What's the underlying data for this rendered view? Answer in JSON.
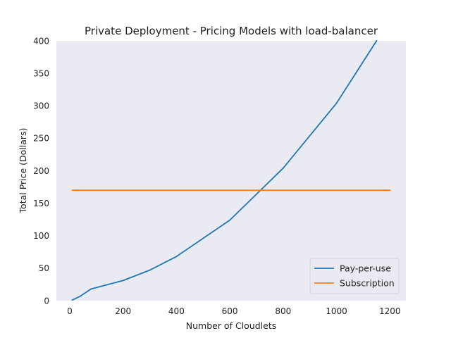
{
  "chart_data": {
    "type": "line",
    "title": "Private Deployment - Pricing Models with load-balancer",
    "xlabel": "Number of Cloudlets",
    "ylabel": "Total Price (Dollars)",
    "xlim": [
      -50,
      1260
    ],
    "ylim": [
      0,
      400
    ],
    "xticks": [
      0,
      200,
      400,
      600,
      800,
      1000,
      1200
    ],
    "yticks": [
      0,
      50,
      100,
      150,
      200,
      250,
      300,
      350,
      400
    ],
    "grid": false,
    "legend_position": "bottom-right",
    "series": [
      {
        "name": "Pay-per-use",
        "color": "#1f77b4",
        "x": [
          10,
          40,
          80,
          200,
          300,
          400,
          600,
          800,
          1000,
          1150
        ],
        "y": [
          1,
          7,
          18,
          31,
          47,
          68,
          124,
          204,
          304,
          400
        ]
      },
      {
        "name": "Subscription",
        "color": "#ff7f0e",
        "x": [
          10,
          1200
        ],
        "y": [
          170,
          170
        ]
      }
    ]
  }
}
